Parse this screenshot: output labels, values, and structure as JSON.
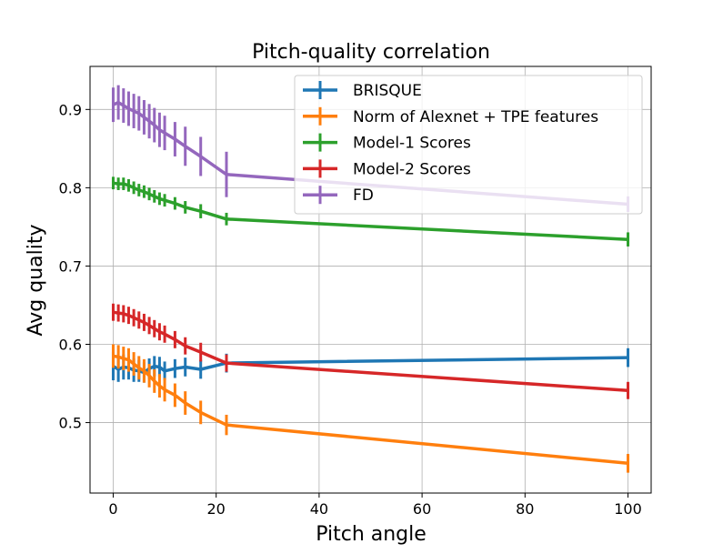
{
  "chart_data": {
    "type": "line",
    "title": "Pitch-quality correlation",
    "xlabel": "Pitch angle",
    "ylabel": "Avg quality",
    "xlim": [
      -4.5,
      104.5
    ],
    "ylim": [
      0.41,
      0.955
    ],
    "xticks": [
      0,
      20,
      40,
      60,
      80,
      100
    ],
    "yticks": [
      0.5,
      0.6,
      0.7,
      0.8,
      0.9
    ],
    "grid": true,
    "legend_position": "top-right",
    "x": [
      0,
      1,
      2,
      3,
      4,
      5,
      6,
      7,
      8,
      9,
      10,
      12,
      14,
      17,
      22,
      100
    ],
    "series": [
      {
        "name": "BRISQUE",
        "color": "#1f77b4",
        "values": [
          0.572,
          0.568,
          0.571,
          0.57,
          0.567,
          0.566,
          0.564,
          0.569,
          0.572,
          0.571,
          0.566,
          0.569,
          0.571,
          0.568,
          0.576,
          0.583
        ],
        "errors": [
          0.018,
          0.016,
          0.016,
          0.015,
          0.015,
          0.014,
          0.013,
          0.013,
          0.013,
          0.013,
          0.012,
          0.012,
          0.012,
          0.012,
          0.012,
          0.012
        ]
      },
      {
        "name": "Norm of Alexnet + TPE features",
        "color": "#ff7f0e",
        "values": [
          0.585,
          0.584,
          0.582,
          0.58,
          0.575,
          0.57,
          0.566,
          0.56,
          0.553,
          0.547,
          0.542,
          0.535,
          0.525,
          0.513,
          0.497,
          0.448
        ],
        "errors": [
          0.015,
          0.015,
          0.015,
          0.015,
          0.015,
          0.015,
          0.015,
          0.015,
          0.015,
          0.015,
          0.015,
          0.015,
          0.015,
          0.015,
          0.013,
          0.012
        ]
      },
      {
        "name": "Model-1 Scores",
        "color": "#2ca02c",
        "values": [
          0.806,
          0.805,
          0.805,
          0.803,
          0.8,
          0.797,
          0.795,
          0.792,
          0.789,
          0.786,
          0.784,
          0.78,
          0.775,
          0.77,
          0.76,
          0.734
        ],
        "errors": [
          0.008,
          0.008,
          0.008,
          0.008,
          0.008,
          0.008,
          0.008,
          0.008,
          0.008,
          0.008,
          0.008,
          0.008,
          0.008,
          0.009,
          0.008,
          0.009
        ]
      },
      {
        "name": "Model-2 Scores",
        "color": "#d62728",
        "values": [
          0.641,
          0.64,
          0.639,
          0.637,
          0.634,
          0.631,
          0.628,
          0.624,
          0.62,
          0.616,
          0.613,
          0.606,
          0.598,
          0.59,
          0.576,
          0.541
        ],
        "errors": [
          0.011,
          0.011,
          0.011,
          0.011,
          0.011,
          0.011,
          0.011,
          0.011,
          0.011,
          0.011,
          0.011,
          0.011,
          0.011,
          0.012,
          0.011,
          0.011
        ]
      },
      {
        "name": "FD",
        "color": "#9467bd",
        "values": [
          0.906,
          0.909,
          0.905,
          0.901,
          0.898,
          0.895,
          0.89,
          0.885,
          0.88,
          0.874,
          0.87,
          0.862,
          0.853,
          0.84,
          0.817,
          0.779
        ],
        "errors": [
          0.022,
          0.022,
          0.022,
          0.022,
          0.022,
          0.022,
          0.022,
          0.022,
          0.022,
          0.022,
          0.022,
          0.022,
          0.025,
          0.025,
          0.029,
          0.01
        ]
      }
    ]
  }
}
